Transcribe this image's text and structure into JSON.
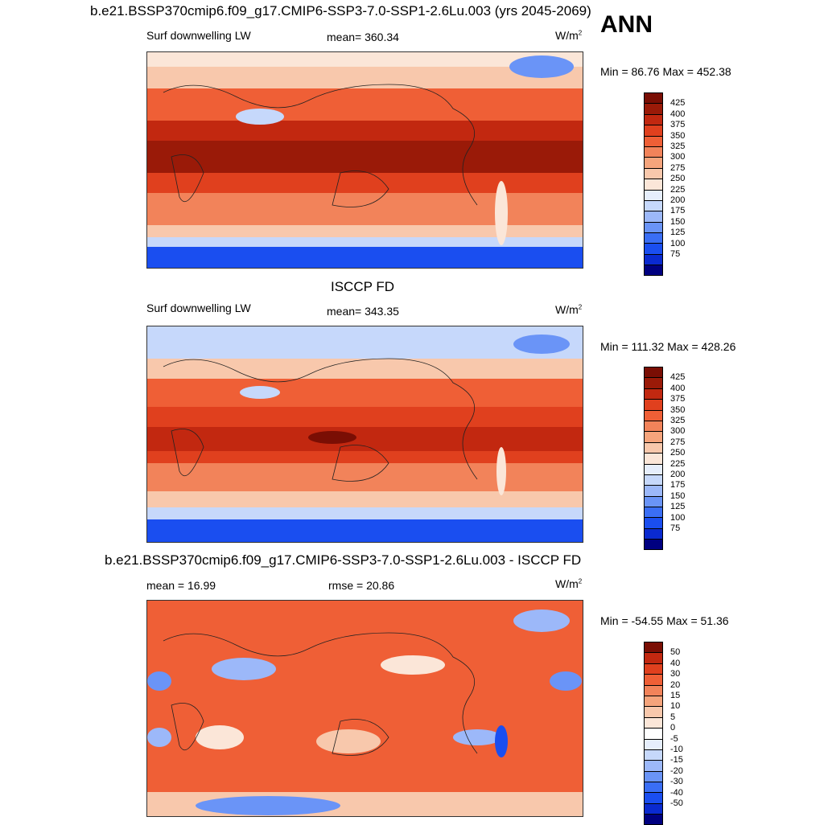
{
  "season": "ANN",
  "colors": {
    "abs_scale": [
      "#000080",
      "#0a2ad0",
      "#1a4ef0",
      "#3a6ef5",
      "#6a94f7",
      "#9cb8f9",
      "#c6d8fb",
      "#e6eefc",
      "#fbe6d8",
      "#f8c8ac",
      "#f5a47c",
      "#f2835a",
      "#ef5f36",
      "#e0401e",
      "#c22810",
      "#9a1a08",
      "#7a0e04"
    ],
    "diff_scale": [
      "#000080",
      "#0a2ad0",
      "#1a4ef0",
      "#3a6ef5",
      "#6a94f7",
      "#9cb8f9",
      "#c6d8fb",
      "#e6eefc",
      "#ffffff",
      "#fbe6d8",
      "#f8c8ac",
      "#f5a47c",
      "#f2835a",
      "#ef5f36",
      "#e0401e",
      "#c22810",
      "#7a0e04"
    ]
  },
  "panels": [
    {
      "title": "b.e21.BSSP370cmip6.f09_g17.CMIP6-SSP3-7.0-SSP1-2.6Lu.003 (yrs 2045-2069)",
      "left_label": "Surf downwelling LW",
      "center_label": "mean= 360.34",
      "units_base": "W/m",
      "units_exp": "2",
      "minmax": "Min =  86.76 Max = 452.38",
      "ticks": [
        "425",
        "400",
        "375",
        "350",
        "325",
        "300",
        "275",
        "250",
        "225",
        "200",
        "175",
        "150",
        "125",
        "100",
        "75"
      ]
    },
    {
      "title": "ISCCP FD",
      "left_label": "Surf downwelling LW",
      "center_label": "mean= 343.35",
      "units_base": "W/m",
      "units_exp": "2",
      "minmax": "Min = 111.32 Max = 428.26",
      "ticks": [
        "425",
        "400",
        "375",
        "350",
        "325",
        "300",
        "275",
        "250",
        "225",
        "200",
        "175",
        "150",
        "125",
        "100",
        "75"
      ]
    },
    {
      "title": "b.e21.BSSP370cmip6.f09_g17.CMIP6-SSP3-7.0-SSP1-2.6Lu.003 - ISCCP FD",
      "left_label": "mean =  16.99",
      "center_label": "rmse =  20.86",
      "units_base": "W/m",
      "units_exp": "2",
      "minmax": "Min = -54.55 Max =  51.36",
      "ticks": [
        "50",
        "40",
        "30",
        "20",
        "15",
        "10",
        "5",
        "0",
        "-5",
        "-10",
        "-15",
        "-20",
        "-30",
        "-40",
        "-50"
      ]
    }
  ]
}
